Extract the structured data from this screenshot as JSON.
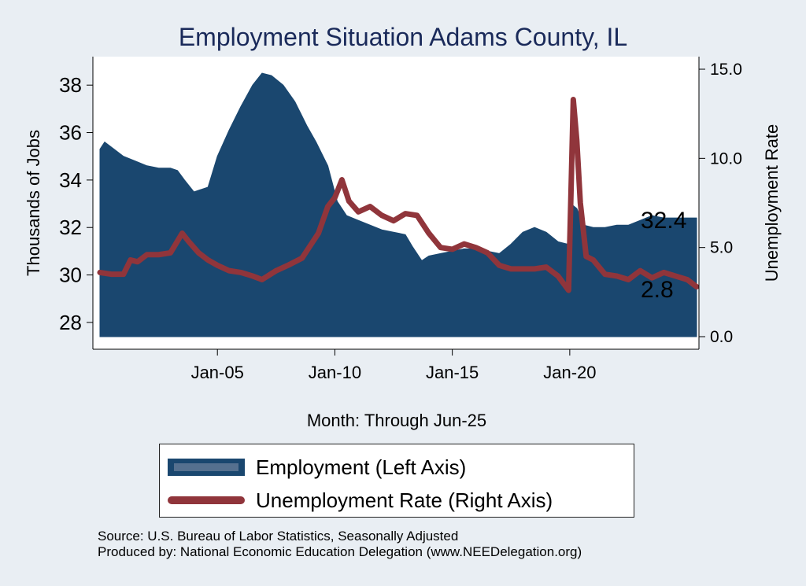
{
  "chart_data": {
    "type": "area+line",
    "title": "Employment Situation Adams  County, IL",
    "xlabel": "Month: Through Jun-25",
    "ylabel_left": "Thousands of Jobs",
    "ylabel_right": "Unemployment Rate",
    "x_ticks": [
      "Jan-05",
      "Jan-10",
      "Jan-15",
      "Jan-20"
    ],
    "x_tick_values": [
      2005.0,
      2010.0,
      2015.0,
      2020.0
    ],
    "xlim": [
      2000.0,
      2025.5
    ],
    "y_left_ticks": [
      28,
      30,
      32,
      34,
      36,
      38
    ],
    "y_left_lim": [
      27.4,
      39.2
    ],
    "y_right_ticks": [
      "0.0",
      "5.0",
      "10.0",
      "15.0"
    ],
    "y_right_tick_values": [
      0,
      5,
      10,
      15
    ],
    "y_right_lim": [
      0,
      15
    ],
    "series": [
      {
        "name": "Employment (Left Axis)",
        "axis": "left",
        "style": "area",
        "color": "#1a476f",
        "x": [
          2000.0,
          2000.2,
          2000.6,
          2001.0,
          2001.5,
          2002.0,
          2002.5,
          2003.0,
          2003.3,
          2003.6,
          2004.0,
          2004.3,
          2004.6,
          2005.0,
          2005.5,
          2006.0,
          2006.5,
          2006.9,
          2007.3,
          2007.8,
          2008.3,
          2008.8,
          2009.2,
          2009.7,
          2010.1,
          2010.5,
          2011.0,
          2011.5,
          2012.0,
          2012.5,
          2013.0,
          2013.3,
          2013.7,
          2014.0,
          2014.5,
          2015.0,
          2015.5,
          2016.0,
          2016.5,
          2017.0,
          2017.5,
          2018.0,
          2018.5,
          2019.0,
          2019.5,
          2019.9,
          2020.05,
          2020.3,
          2020.6,
          2021.0,
          2021.5,
          2022.0,
          2022.5,
          2023.0,
          2023.5,
          2024.0,
          2024.5,
          2025.0,
          2025.4
        ],
        "values": [
          35.3,
          35.6,
          35.3,
          35.0,
          34.8,
          34.6,
          34.5,
          34.5,
          34.4,
          34.0,
          33.5,
          33.6,
          33.7,
          35.0,
          36.1,
          37.1,
          38.0,
          38.5,
          38.4,
          38.0,
          37.3,
          36.3,
          35.6,
          34.6,
          33.1,
          32.5,
          32.3,
          32.1,
          31.9,
          31.8,
          31.7,
          31.2,
          30.6,
          30.8,
          30.9,
          31.0,
          31.1,
          31.1,
          31.0,
          30.9,
          31.3,
          31.8,
          32.0,
          31.8,
          31.4,
          31.3,
          33.0,
          32.8,
          32.1,
          32.0,
          32.0,
          32.1,
          32.1,
          32.3,
          32.5,
          32.4,
          32.4,
          32.4,
          32.4
        ],
        "end_label": "32.4"
      },
      {
        "name": "Unemployment Rate (Right Axis)",
        "axis": "right",
        "style": "line",
        "color": "#90353b",
        "x": [
          2000.0,
          2000.5,
          2001.0,
          2001.3,
          2001.6,
          2002.0,
          2002.5,
          2003.0,
          2003.5,
          2003.8,
          2004.2,
          2004.6,
          2005.0,
          2005.5,
          2006.0,
          2006.5,
          2006.9,
          2007.5,
          2008.0,
          2008.6,
          2009.0,
          2009.3,
          2009.7,
          2010.0,
          2010.3,
          2010.6,
          2011.0,
          2011.5,
          2012.0,
          2012.5,
          2013.0,
          2013.5,
          2014.0,
          2014.5,
          2015.0,
          2015.5,
          2016.0,
          2016.5,
          2017.0,
          2017.5,
          2018.0,
          2018.5,
          2019.0,
          2019.5,
          2019.95,
          2020.15,
          2020.3,
          2020.45,
          2020.7,
          2021.0,
          2021.5,
          2022.0,
          2022.5,
          2023.0,
          2023.5,
          2024.0,
          2024.5,
          2025.0,
          2025.4
        ],
        "values": [
          3.6,
          3.5,
          3.5,
          4.3,
          4.2,
          4.6,
          4.6,
          4.7,
          5.8,
          5.3,
          4.7,
          4.3,
          4.0,
          3.7,
          3.6,
          3.4,
          3.2,
          3.7,
          4.0,
          4.4,
          5.2,
          5.8,
          7.3,
          7.8,
          8.8,
          7.6,
          7.0,
          7.3,
          6.8,
          6.5,
          6.9,
          6.8,
          5.8,
          5.0,
          4.9,
          5.2,
          5.0,
          4.7,
          4.0,
          3.8,
          3.8,
          3.8,
          3.9,
          3.4,
          2.6,
          13.3,
          11.0,
          7.5,
          4.5,
          4.3,
          3.5,
          3.4,
          3.2,
          3.7,
          3.3,
          3.6,
          3.4,
          3.2,
          2.8
        ],
        "end_label": "2.8"
      }
    ],
    "legend_position": "bottom"
  },
  "source_line": "Source: U.S. Bureau of Labor Statistics, Seasonally Adjusted",
  "produced_by_line": "Produced by: National Economic Education Delegation (www.NEEDelegation.org)",
  "colors": {
    "background": "#e9eef3",
    "plot_area": "#ffffff",
    "employment": "#1a476f",
    "unemployment": "#90353b",
    "title": "#1a2a5a"
  }
}
